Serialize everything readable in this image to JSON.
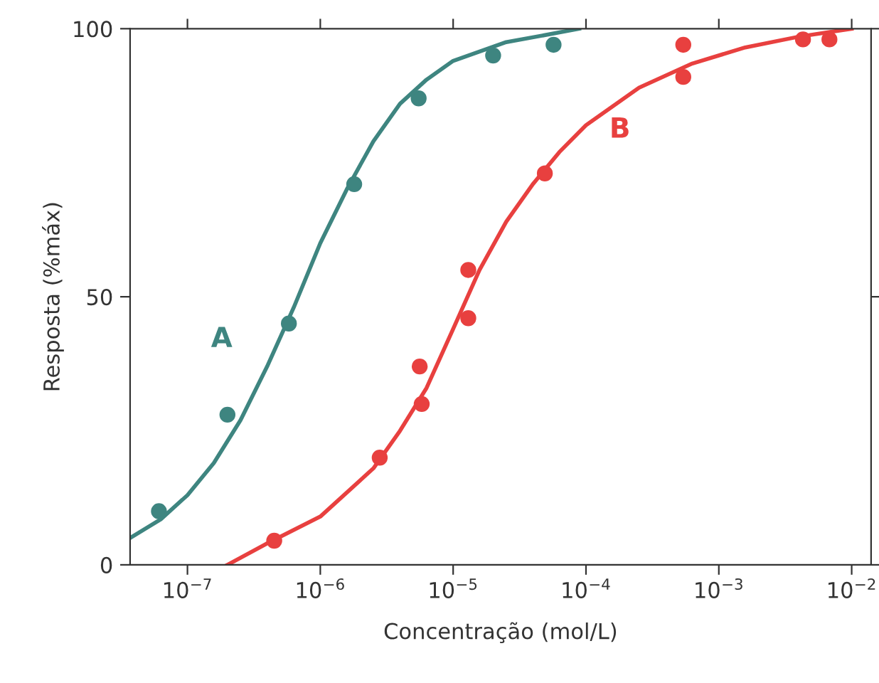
{
  "chart_data": {
    "type": "scatter",
    "xlabel": "Concentração (mol/L)",
    "ylabel": "Resposta (%máx)",
    "log": "x",
    "xlim": [
      3.7e-08,
      0.014
    ],
    "ylim": [
      0,
      100
    ],
    "xticks": [
      {
        "value": 1e-07,
        "label": "10$^{−7}$"
      },
      {
        "value": 1e-06,
        "label": "10$^{−6}$"
      },
      {
        "value": 1e-05,
        "label": "10$^{−5}$"
      },
      {
        "value": 0.0001,
        "label": "10$^{−4}$"
      },
      {
        "value": 0.001,
        "label": "10$^{−3}$"
      },
      {
        "value": 0.01,
        "label": "10$^{−2}$"
      }
    ],
    "yticks": [
      0,
      50,
      100
    ],
    "grid": false,
    "legend": false,
    "marker": "circle",
    "series": [
      {
        "name": "A",
        "color": "#3e8580",
        "x": [
          6.1e-08,
          2e-07,
          5.8e-07,
          1.8e-06,
          5.5e-06,
          2e-05,
          5.7e-05
        ],
        "values": [
          10,
          28,
          45,
          71,
          87,
          95,
          97
        ]
      },
      {
        "type": "line",
        "color": "#3e8580",
        "marker": "none",
        "x": [
          3.7e-08,
          6.3e-08,
          1e-07,
          1.58e-07,
          2.51e-07,
          3.98e-07,
          6.31e-07,
          1e-06,
          1.58e-06,
          2.51e-06,
          3.98e-06,
          6.31e-06,
          1e-05,
          2.51e-05,
          6.31e-05,
          8.9e-05
        ],
        "values": [
          5,
          8.5,
          13,
          19,
          27,
          37,
          48,
          60,
          70,
          79,
          86,
          90.5,
          94,
          97.5,
          99.3,
          100
        ]
      },
      {
        "name": "B",
        "color": "#e8403f",
        "x": [
          4.5e-07,
          2.8e-06,
          5.8e-06,
          5.6e-06,
          1.3e-05,
          1.3e-05,
          4.9e-05,
          0.00054,
          0.00054,
          0.0043,
          0.0068
        ],
        "values": [
          4.5,
          20,
          30,
          37,
          46,
          55,
          73,
          97,
          91,
          98,
          98
        ]
      },
      {
        "type": "line",
        "color": "#e8403f",
        "marker": "none",
        "x": [
          2e-07,
          3.98e-07,
          1e-06,
          2.51e-06,
          3.98e-06,
          6.31e-06,
          1e-05,
          1.58e-05,
          2.51e-05,
          3.98e-05,
          6.31e-05,
          0.0001,
          0.000251,
          0.000631,
          0.00158,
          0.00398,
          0.01
        ],
        "values": [
          0,
          4,
          9,
          18,
          25,
          33,
          44,
          55,
          64,
          71,
          77,
          82,
          89,
          93.5,
          96.5,
          98.5,
          100
        ]
      }
    ]
  }
}
